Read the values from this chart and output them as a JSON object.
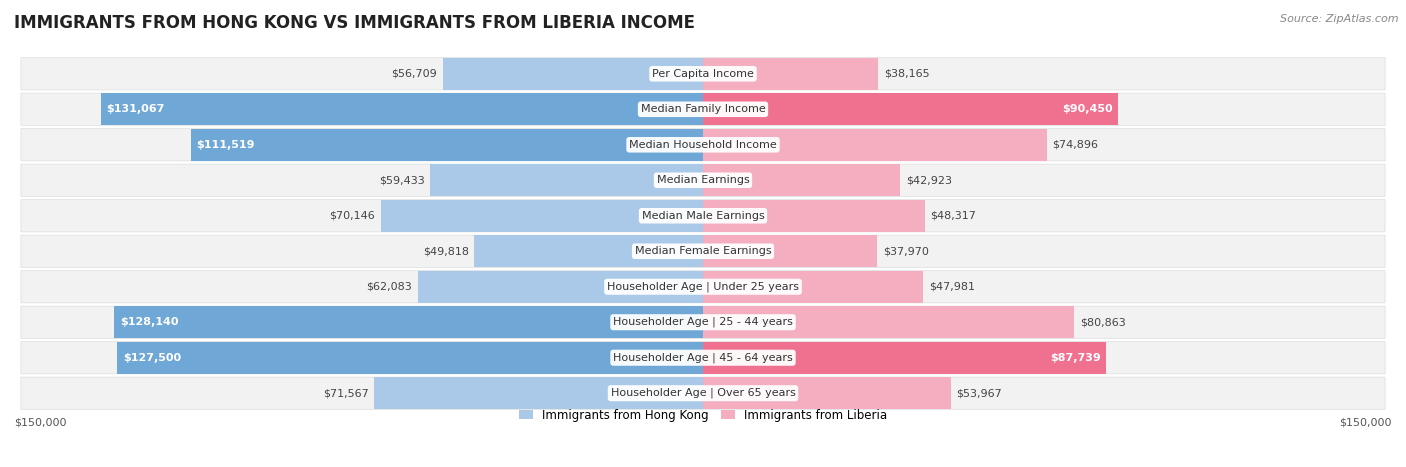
{
  "title": "IMMIGRANTS FROM HONG KONG VS IMMIGRANTS FROM LIBERIA INCOME",
  "source": "Source: ZipAtlas.com",
  "categories": [
    "Per Capita Income",
    "Median Family Income",
    "Median Household Income",
    "Median Earnings",
    "Median Male Earnings",
    "Median Female Earnings",
    "Householder Age | Under 25 years",
    "Householder Age | 25 - 44 years",
    "Householder Age | 45 - 64 years",
    "Householder Age | Over 65 years"
  ],
  "hong_kong_values": [
    56709,
    131067,
    111519,
    59433,
    70146,
    49818,
    62083,
    128140,
    127500,
    71567
  ],
  "liberia_values": [
    38165,
    90450,
    74896,
    42923,
    48317,
    37970,
    47981,
    80863,
    87739,
    53967
  ],
  "hong_kong_labels": [
    "$56,709",
    "$131,067",
    "$111,519",
    "$59,433",
    "$70,146",
    "$49,818",
    "$62,083",
    "$128,140",
    "$127,500",
    "$71,567"
  ],
  "liberia_labels": [
    "$38,165",
    "$90,450",
    "$74,896",
    "$42,923",
    "$48,317",
    "$37,970",
    "$47,981",
    "$80,863",
    "$87,739",
    "$53,967"
  ],
  "hk_inside_threshold": 100000,
  "lib_inside_threshold": 83000,
  "hk_color_saturated": "#6fa8d6",
  "hk_color_light": "#aac8e8",
  "lib_color_saturated": "#f07090",
  "lib_color_light": "#f5aec0",
  "max_value": 150000,
  "xlabel_left": "$150,000",
  "xlabel_right": "$150,000",
  "legend_hk": "Immigrants from Hong Kong",
  "legend_lib": "Immigrants from Liberia",
  "row_bg": "#f2f2f2",
  "row_separator": "#ffffff",
  "title_fontsize": 12,
  "source_fontsize": 8,
  "label_fontsize": 8,
  "cat_fontsize": 8
}
